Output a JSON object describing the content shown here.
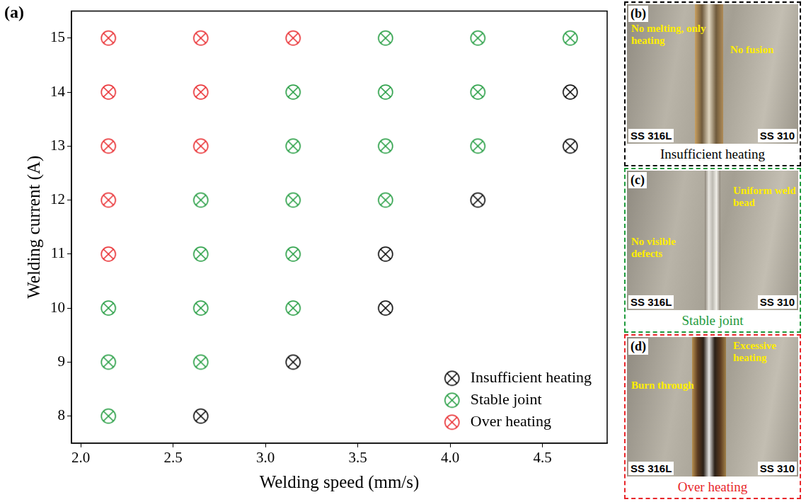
{
  "chart_data": {
    "type": "scatter",
    "panel_label": "(a)",
    "x_label": "Welding speed (mm/s)",
    "y_label": "Welding current (A)",
    "xlim": [
      1.95,
      4.85
    ],
    "ylim": [
      7.5,
      15.5
    ],
    "xticks": [
      {
        "value": 2,
        "label": "2.0"
      },
      {
        "value": 2.5,
        "label": "2.5"
      },
      {
        "value": 3,
        "label": "3.0"
      },
      {
        "value": 3.5,
        "label": "3.5"
      },
      {
        "value": 4,
        "label": "4.0"
      },
      {
        "value": 4.5,
        "label": "4.5"
      }
    ],
    "yticks": [
      8,
      9,
      10,
      11,
      12,
      13,
      14,
      15
    ],
    "grid": false,
    "legend": "lower right",
    "series": [
      {
        "name": "Insufficient heating",
        "color": "#000000",
        "marker": "circle_x",
        "x": [
          4.65,
          4.65,
          4.15,
          3.65,
          3.65,
          3.15,
          2.65
        ],
        "y": [
          14,
          13,
          12,
          11,
          10,
          9,
          8
        ]
      },
      {
        "name": "Stable joint",
        "color": "#1e9a3c",
        "marker": "circle_x",
        "x": [
          3.65,
          4.15,
          4.65,
          3.15,
          3.65,
          4.15,
          3.15,
          3.65,
          4.15,
          2.65,
          3.15,
          3.65,
          2.65,
          3.15,
          2.15,
          2.65,
          3.15,
          2.15,
          2.65,
          2.15
        ],
        "y": [
          15,
          15,
          15,
          14,
          14,
          14,
          13,
          13,
          13,
          12,
          12,
          12,
          11,
          11,
          10,
          10,
          10,
          9,
          9,
          8
        ]
      },
      {
        "name": "Over heating",
        "color": "#e8262a",
        "marker": "circle_x",
        "x": [
          2.15,
          2.65,
          3.15,
          2.15,
          2.65,
          2.15,
          2.65,
          2.15,
          2.15
        ],
        "y": [
          15,
          15,
          15,
          14,
          14,
          13,
          13,
          12,
          11
        ]
      }
    ]
  },
  "photo_panels": [
    {
      "label": "(b)",
      "caption": "Insufficient heating",
      "color": "#000000",
      "left_material": "SS 316L",
      "right_material": "SS 310",
      "annotations": [
        "No melting, only heating",
        "No fusion"
      ]
    },
    {
      "label": "(c)",
      "caption": "Stable joint",
      "color": "#1e9a3c",
      "left_material": "SS 316L",
      "right_material": "SS 310",
      "annotations": [
        "Uniform weld bead",
        "No visible defects"
      ]
    },
    {
      "label": "(d)",
      "caption": "Over heating",
      "color": "#e8262a",
      "left_material": "SS 316L",
      "right_material": "SS 310",
      "annotations": [
        "Excessive heating",
        "Burn through"
      ]
    }
  ]
}
